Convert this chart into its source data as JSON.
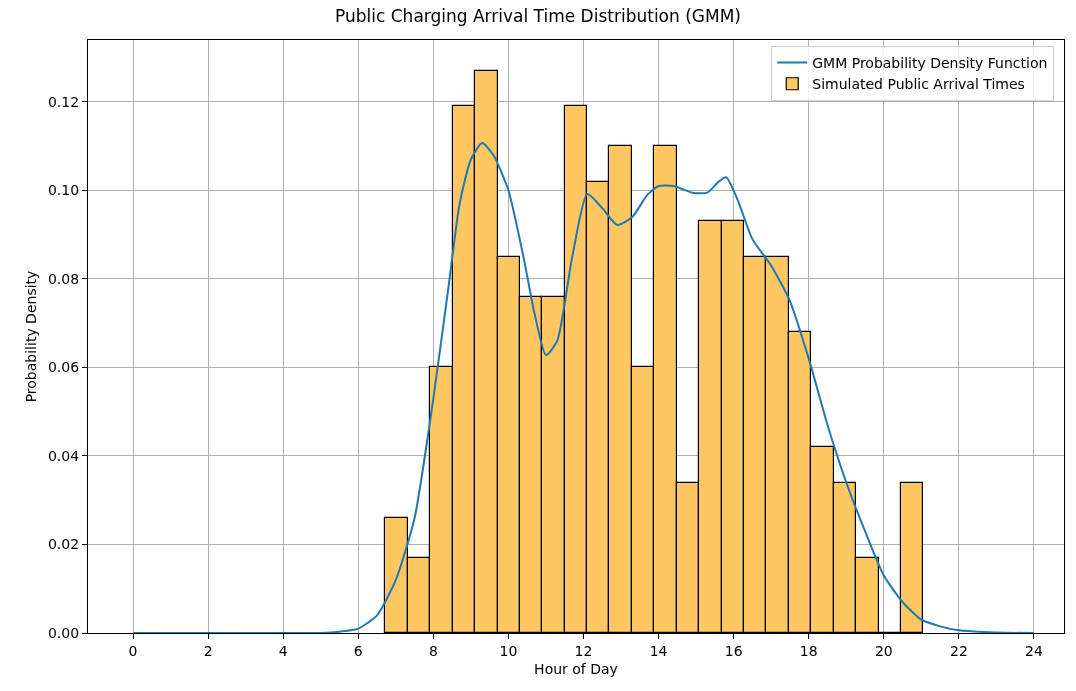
{
  "chart_data": {
    "type": "histogram",
    "title": "Public Charging Arrival Time Distribution (GMM)",
    "xlabel": "Hour of Day",
    "ylabel": "Probability Density",
    "bins": [
      6.72,
      7.32,
      7.91,
      8.51,
      9.11,
      9.71,
      10.3,
      10.9,
      11.5,
      12.09,
      12.69,
      13.29,
      13.88,
      14.48,
      15.08,
      15.68,
      16.27,
      16.87,
      17.47,
      18.06,
      18.66,
      19.26,
      19.86,
      20.45,
      21.05
    ],
    "series": [
      {
        "type": "line",
        "name": "GMM Probability Density Function",
        "color": "#1f77b4",
        "x": [
          0,
          1,
          2,
          3,
          4,
          5,
          5.5,
          6,
          6.5,
          7,
          7.5,
          8,
          8.4,
          8.7,
          9,
          9.3,
          9.6,
          10,
          10.4,
          10.7,
          11,
          11.3,
          11.7,
          12.1,
          12.5,
          12.9,
          13.3,
          13.7,
          14,
          14.4,
          14.9,
          15.3,
          15.6,
          15.8,
          16.1,
          16.5,
          17,
          17.5,
          18,
          18.5,
          19,
          19.5,
          20,
          20.5,
          21,
          21.5,
          22,
          23,
          24
        ],
        "values": [
          0,
          0,
          0,
          0,
          0,
          0,
          0.0003,
          0.001,
          0.004,
          0.012,
          0.026,
          0.053,
          0.078,
          0.097,
          0.107,
          0.1107,
          0.108,
          0.1,
          0.085,
          0.072,
          0.0628,
          0.066,
          0.085,
          0.0992,
          0.096,
          0.0922,
          0.094,
          0.099,
          0.101,
          0.101,
          0.0995,
          0.0995,
          0.102,
          0.103,
          0.098,
          0.089,
          0.083,
          0.075,
          0.062,
          0.047,
          0.034,
          0.023,
          0.013,
          0.007,
          0.003,
          0.0015,
          0.0006,
          0.0001,
          0
        ]
      },
      {
        "type": "histogram",
        "name": "Simulated Public Arrival Times",
        "color": "#fec762",
        "values": [
          0.026,
          0.017,
          0.06,
          0.119,
          0.127,
          0.085,
          0.076,
          0.076,
          0.119,
          0.102,
          0.11,
          0.06,
          0.11,
          0.034,
          0.093,
          0.093,
          0.085,
          0.085,
          0.068,
          0.042,
          0.034,
          0.017,
          0,
          0.034
        ]
      }
    ],
    "xlim": [
      -1.2,
      24.8
    ],
    "xticks": [
      0,
      2,
      4,
      6,
      8,
      10,
      12,
      14,
      16,
      18,
      20,
      22,
      24
    ],
    "ylim": [
      0,
      0.134
    ],
    "yticks": [
      {
        "value": 0,
        "label": "0.00"
      },
      {
        "value": 0.02,
        "label": "0.02"
      },
      {
        "value": 0.04,
        "label": "0.04"
      },
      {
        "value": 0.06,
        "label": "0.06"
      },
      {
        "value": 0.08,
        "label": "0.08"
      },
      {
        "value": 0.1,
        "label": "0.10"
      },
      {
        "value": 0.12,
        "label": "0.12"
      }
    ],
    "grid": true,
    "legend": "top right"
  }
}
